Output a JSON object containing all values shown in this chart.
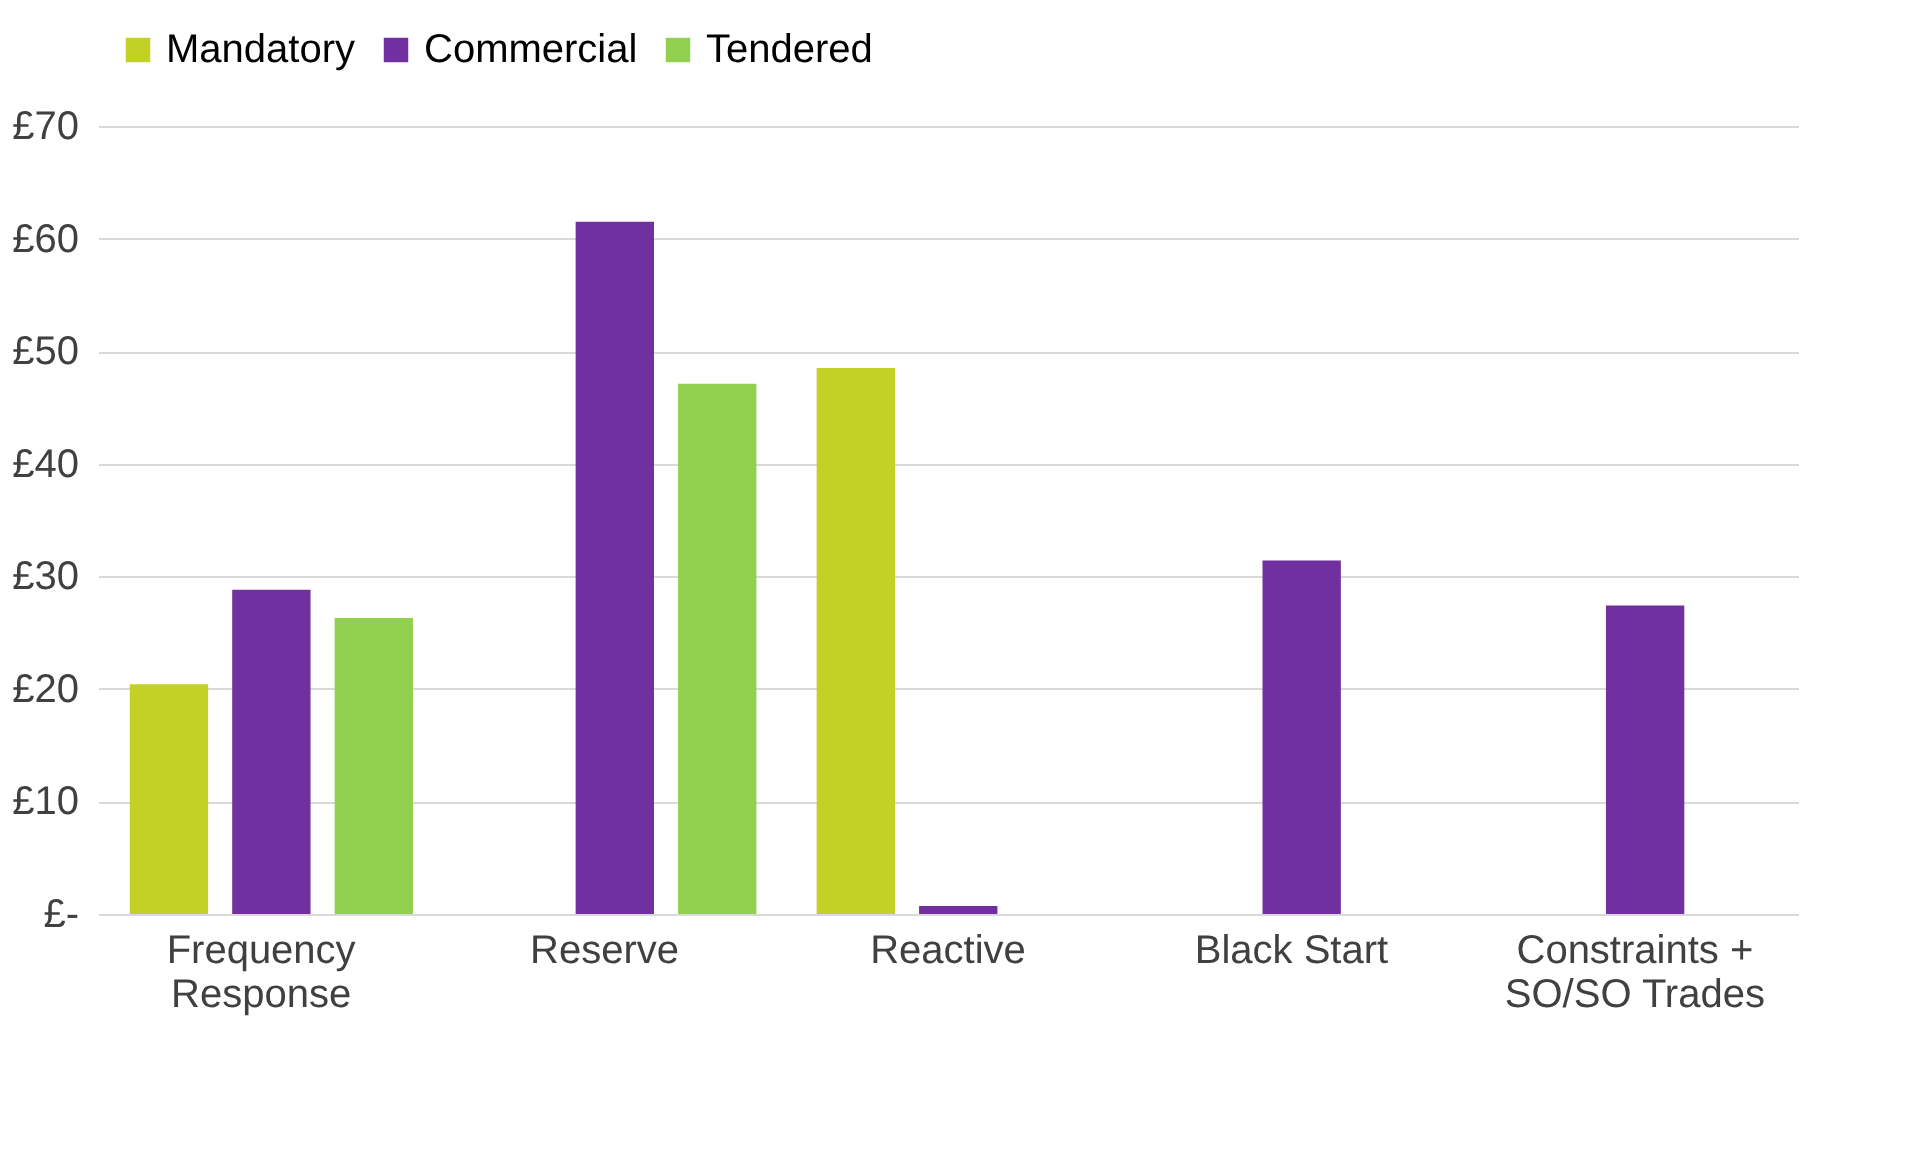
{
  "chart_data": {
    "type": "bar",
    "categories": [
      "Frequency Response",
      "Reserve",
      "Reactive",
      "Black Start",
      "Constraints + SO/SO Trades"
    ],
    "series": [
      {
        "name": "Mandatory",
        "color": "#c3d126",
        "values": [
          20.4,
          null,
          48.5,
          null,
          null
        ]
      },
      {
        "name": "Commercial",
        "color": "#7030a0",
        "values": [
          28.8,
          61.5,
          0.7,
          31.4,
          27.4
        ]
      },
      {
        "name": "Tendered",
        "color": "#92d050",
        "values": [
          26.3,
          47.1,
          null,
          null,
          null
        ]
      }
    ],
    "ylim": [
      0,
      70
    ],
    "yticks": [
      {
        "value": 0,
        "label": "£-"
      },
      {
        "value": 10,
        "label": "£10"
      },
      {
        "value": 20,
        "label": "£20"
      },
      {
        "value": 30,
        "label": "£30"
      },
      {
        "value": 40,
        "label": "£40"
      },
      {
        "value": 50,
        "label": "£50"
      },
      {
        "value": 60,
        "label": "£60"
      },
      {
        "value": 70,
        "label": "£70"
      }
    ],
    "grid": "y",
    "legend": "top"
  }
}
